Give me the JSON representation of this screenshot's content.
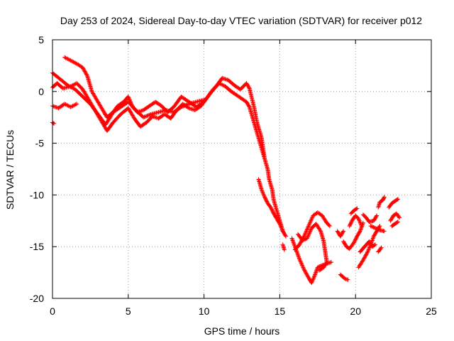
{
  "chart_data": {
    "type": "scatter",
    "title": "Day 253 of 2024, Sidereal Day-to-day VTEC variation (SDTVAR) for receiver p012",
    "xlabel": "GPS time / hours",
    "ylabel": "SDTVAR / TECUs",
    "xlim": [
      0,
      25
    ],
    "ylim": [
      -20,
      5
    ],
    "x_ticks": [
      0,
      5,
      10,
      15,
      20,
      25
    ],
    "y_ticks": [
      5,
      0,
      -5,
      -10,
      -15,
      -20
    ],
    "x_tick_labels": [
      "0",
      "5",
      "10",
      "15",
      "20",
      "25"
    ],
    "y_tick_labels": [
      "5",
      "0",
      "-5",
      "-10",
      "-15",
      "-20"
    ],
    "grid": true,
    "marker": "+",
    "series": [
      {
        "name": "SDTVAR",
        "color": "#ff0000",
        "tracks": [
          [
            [
              0.0,
              1.8
            ],
            [
              0.5,
              1.2
            ],
            [
              1.0,
              0.6
            ],
            [
              1.5,
              0.2
            ],
            [
              2.0,
              -0.5
            ],
            [
              2.5,
              -1.2
            ],
            [
              3.0,
              -2.2
            ],
            [
              3.5,
              -3.2
            ],
            [
              3.8,
              -2.5
            ],
            [
              4.0,
              -2.0
            ],
            [
              4.5,
              -1.5
            ],
            [
              5.0,
              -1.0
            ],
            [
              5.5,
              -1.8
            ],
            [
              6.0,
              -2.5
            ],
            [
              6.5,
              -2.2
            ],
            [
              7.0,
              -2.0
            ],
            [
              7.5,
              -1.8
            ],
            [
              8.0,
              -2.0
            ],
            [
              8.5,
              -1.5
            ],
            [
              9.0,
              -1.2
            ],
            [
              9.5,
              -1.0
            ],
            [
              10.0,
              -0.8
            ]
          ],
          [
            [
              0.8,
              3.3
            ],
            [
              1.2,
              3.0
            ],
            [
              1.7,
              2.6
            ],
            [
              2.0,
              2.3
            ],
            [
              2.3,
              1.5
            ],
            [
              2.6,
              0.0
            ],
            [
              3.0,
              -1.0
            ],
            [
              3.4,
              -2.0
            ],
            [
              3.6,
              -2.5
            ],
            [
              4.0,
              -2.0
            ],
            [
              4.3,
              -1.4
            ],
            [
              4.7,
              -1.0
            ],
            [
              5.0,
              -0.5
            ],
            [
              5.3,
              -1.5
            ],
            [
              5.6,
              -2.0
            ],
            [
              6.0,
              -1.8
            ],
            [
              6.4,
              -1.4
            ],
            [
              6.8,
              -1.0
            ],
            [
              7.2,
              -1.4
            ],
            [
              7.6,
              -2.0
            ],
            [
              8.0,
              -1.5
            ],
            [
              8.5,
              -0.5
            ],
            [
              9.0,
              -1.0
            ],
            [
              9.5,
              -1.5
            ],
            [
              10.0,
              -1.0
            ],
            [
              10.4,
              -0.2
            ],
            [
              10.8,
              0.5
            ],
            [
              11.2,
              1.3
            ],
            [
              11.6,
              1.1
            ],
            [
              12.0,
              0.6
            ],
            [
              12.4,
              0.2
            ],
            [
              12.8,
              0.8
            ],
            [
              13.0,
              0.3
            ],
            [
              13.3,
              -1.5
            ],
            [
              13.5,
              -3.0
            ],
            [
              13.8,
              -4.5
            ],
            [
              14.0,
              -6.5
            ]
          ],
          [
            [
              0.0,
              0.4
            ],
            [
              0.3,
              0.8
            ],
            [
              0.7,
              0.3
            ],
            [
              1.2,
              0.5
            ],
            [
              1.6,
              0.8
            ],
            [
              2.0,
              0.2
            ],
            [
              2.4,
              -0.8
            ],
            [
              2.8,
              -1.8
            ],
            [
              3.2,
              -2.8
            ],
            [
              3.6,
              -3.8
            ],
            [
              4.0,
              -3.0
            ],
            [
              4.5,
              -2.2
            ],
            [
              5.0,
              -1.6
            ],
            [
              5.4,
              -2.6
            ],
            [
              5.8,
              -3.4
            ],
            [
              6.2,
              -3.0
            ],
            [
              6.6,
              -2.4
            ],
            [
              7.0,
              -2.6
            ],
            [
              7.4,
              -2.2
            ],
            [
              7.8,
              -2.6
            ],
            [
              8.2,
              -1.8
            ],
            [
              8.6,
              -1.2
            ],
            [
              9.0,
              -1.6
            ],
            [
              9.4,
              -1.8
            ],
            [
              9.8,
              -1.4
            ],
            [
              10.2,
              -0.6
            ],
            [
              10.6,
              0.2
            ],
            [
              11.0,
              0.8
            ],
            [
              11.4,
              0.5
            ],
            [
              11.8,
              0.0
            ],
            [
              12.2,
              -0.4
            ],
            [
              12.5,
              -0.7
            ],
            [
              12.8,
              -1.0
            ],
            [
              13.0,
              -1.5
            ],
            [
              13.2,
              -2.5
            ],
            [
              13.4,
              -3.5
            ],
            [
              13.6,
              -4.5
            ],
            [
              13.8,
              -5.5
            ],
            [
              14.0,
              -6.5
            ],
            [
              14.2,
              -7.5
            ],
            [
              14.3,
              -8.5
            ],
            [
              14.5,
              -9.5
            ],
            [
              14.6,
              -10.5
            ],
            [
              14.8,
              -11.5
            ],
            [
              15.0,
              -12.5
            ],
            [
              15.2,
              -13.5
            ],
            [
              15.4,
              -14.0
            ]
          ],
          [
            [
              0.0,
              -1.4
            ],
            [
              0.4,
              -1.6
            ],
            [
              0.8,
              -1.2
            ],
            [
              1.2,
              -1.5
            ],
            [
              1.6,
              -1.2
            ]
          ],
          [
            [
              0.0,
              -3.0
            ],
            [
              0.1,
              -3.1
            ]
          ],
          [
            [
              13.6,
              -8.5
            ],
            [
              13.8,
              -9.5
            ],
            [
              14.0,
              -10.2
            ],
            [
              14.2,
              -10.8
            ],
            [
              14.4,
              -11.2
            ],
            [
              14.6,
              -11.8
            ],
            [
              14.8,
              -12.3
            ],
            [
              15.0,
              -12.8
            ],
            [
              15.2,
              -13.5
            ]
          ],
          [
            [
              15.2,
              -14.8
            ],
            [
              15.3,
              -15.3
            ]
          ],
          [
            [
              15.8,
              -14.2
            ],
            [
              16.0,
              -15.0
            ],
            [
              16.3,
              -16.2
            ],
            [
              16.6,
              -17.2
            ],
            [
              16.9,
              -18.0
            ],
            [
              17.1,
              -18.5
            ],
            [
              17.3,
              -17.8
            ],
            [
              17.5,
              -17.0
            ],
            [
              17.8,
              -16.8
            ],
            [
              18.2,
              -16.6
            ],
            [
              18.4,
              -16.5
            ]
          ],
          [
            [
              16.0,
              -15.3
            ],
            [
              16.3,
              -14.8
            ],
            [
              16.6,
              -14.0
            ],
            [
              16.9,
              -13.0
            ],
            [
              17.2,
              -12.0
            ],
            [
              17.5,
              -11.7
            ],
            [
              17.8,
              -12.0
            ],
            [
              18.1,
              -12.7
            ],
            [
              18.3,
              -13.0
            ]
          ],
          [
            [
              16.2,
              -13.8
            ],
            [
              16.5,
              -14.4
            ],
            [
              16.8,
              -14.2
            ],
            [
              17.1,
              -13.2
            ],
            [
              17.4,
              -12.8
            ],
            [
              17.7,
              -13.5
            ],
            [
              17.9,
              -14.5
            ],
            [
              18.0,
              -15.5
            ],
            [
              18.1,
              -16.5
            ],
            [
              17.9,
              -17.0
            ],
            [
              17.6,
              -17.3
            ]
          ],
          [
            [
              18.8,
              -13.5
            ],
            [
              19.0,
              -14.0
            ],
            [
              19.2,
              -13.5
            ]
          ],
          [
            [
              19.0,
              -17.7
            ],
            [
              19.3,
              -18.1
            ],
            [
              19.5,
              -18.2
            ]
          ],
          [
            [
              19.2,
              -14.5
            ],
            [
              19.4,
              -15.0
            ],
            [
              19.6,
              -15.2
            ],
            [
              19.9,
              -14.6
            ],
            [
              20.1,
              -14.0
            ],
            [
              20.3,
              -13.5
            ],
            [
              20.5,
              -12.7
            ]
          ],
          [
            [
              19.6,
              -13.0
            ],
            [
              19.8,
              -12.4
            ],
            [
              20.0,
              -12.0
            ],
            [
              20.2,
              -12.3
            ],
            [
              20.4,
              -13.0
            ]
          ],
          [
            [
              19.7,
              -11.8
            ],
            [
              19.9,
              -11.5
            ],
            [
              20.1,
              -11.3
            ]
          ],
          [
            [
              20.2,
              -17.0
            ],
            [
              20.5,
              -16.3
            ],
            [
              20.8,
              -15.5
            ],
            [
              21.0,
              -14.8
            ],
            [
              21.2,
              -14.0
            ],
            [
              21.4,
              -13.5
            ],
            [
              21.6,
              -13.0
            ]
          ],
          [
            [
              20.3,
              -15.5
            ],
            [
              20.6,
              -15.0
            ],
            [
              20.9,
              -14.5
            ],
            [
              21.1,
              -15.0
            ],
            [
              21.3,
              -14.8
            ]
          ],
          [
            [
              20.5,
              -11.9
            ],
            [
              20.7,
              -12.2
            ],
            [
              20.9,
              -12.6
            ],
            [
              21.2,
              -12.5
            ],
            [
              21.4,
              -12.0
            ]
          ],
          [
            [
              21.0,
              -13.0
            ],
            [
              21.3,
              -13.2
            ],
            [
              21.6,
              -13.4
            ],
            [
              21.9,
              -13.5
            ]
          ],
          [
            [
              21.5,
              -11.2
            ],
            [
              21.6,
              -10.7
            ],
            [
              21.8,
              -10.5
            ],
            [
              21.9,
              -10.2
            ]
          ],
          [
            [
              21.5,
              -15.5
            ],
            [
              21.7,
              -15.1
            ]
          ],
          [
            [
              22.2,
              -11.2
            ],
            [
              22.4,
              -10.8
            ],
            [
              22.6,
              -10.6
            ],
            [
              22.8,
              -10.4
            ]
          ],
          [
            [
              22.3,
              -12.5
            ],
            [
              22.5,
              -12.0
            ],
            [
              22.7,
              -11.8
            ],
            [
              22.9,
              -12.2
            ]
          ],
          [
            [
              22.4,
              -13.0
            ],
            [
              22.6,
              -12.8
            ],
            [
              22.8,
              -12.6
            ]
          ]
        ]
      }
    ]
  }
}
